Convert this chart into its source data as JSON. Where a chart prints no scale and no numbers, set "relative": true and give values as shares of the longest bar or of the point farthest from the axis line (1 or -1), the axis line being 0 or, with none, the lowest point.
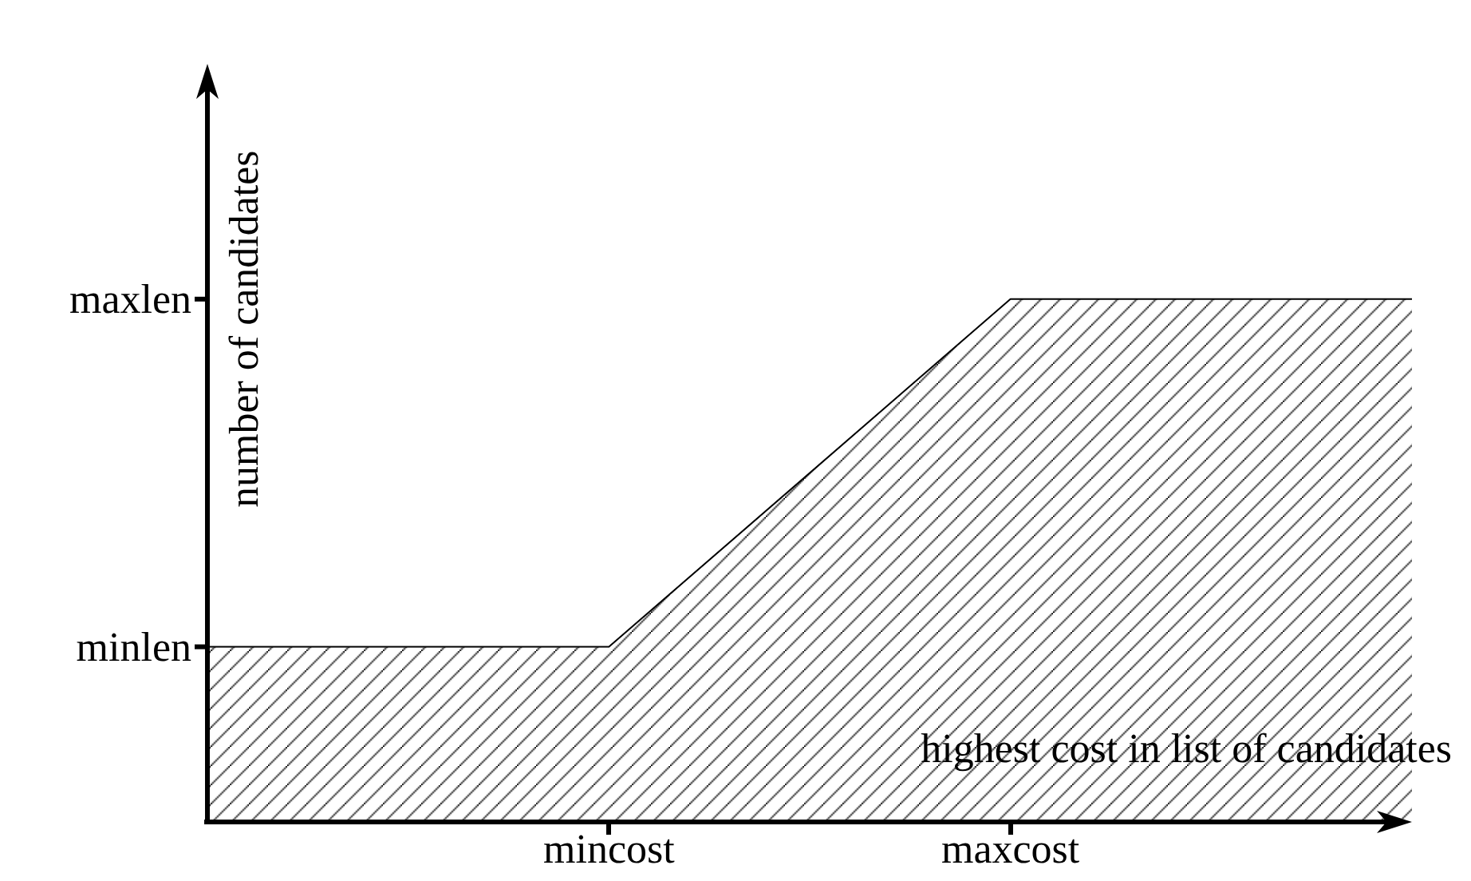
{
  "chart_data": {
    "type": "area",
    "relative": true,
    "xlabel": "highest cost in list of candidates",
    "ylabel": "number of candidates",
    "categories": [
      null,
      "mincost",
      "maxcost",
      null
    ],
    "series": [
      {
        "color": "#000000",
        "values": [
          0.335,
          0.335,
          1,
          1
        ]
      }
    ],
    "annotations": [
      "minlen",
      "maxlen"
    ],
    "grid": false,
    "marker": "none",
    "line_style": "solid"
  }
}
